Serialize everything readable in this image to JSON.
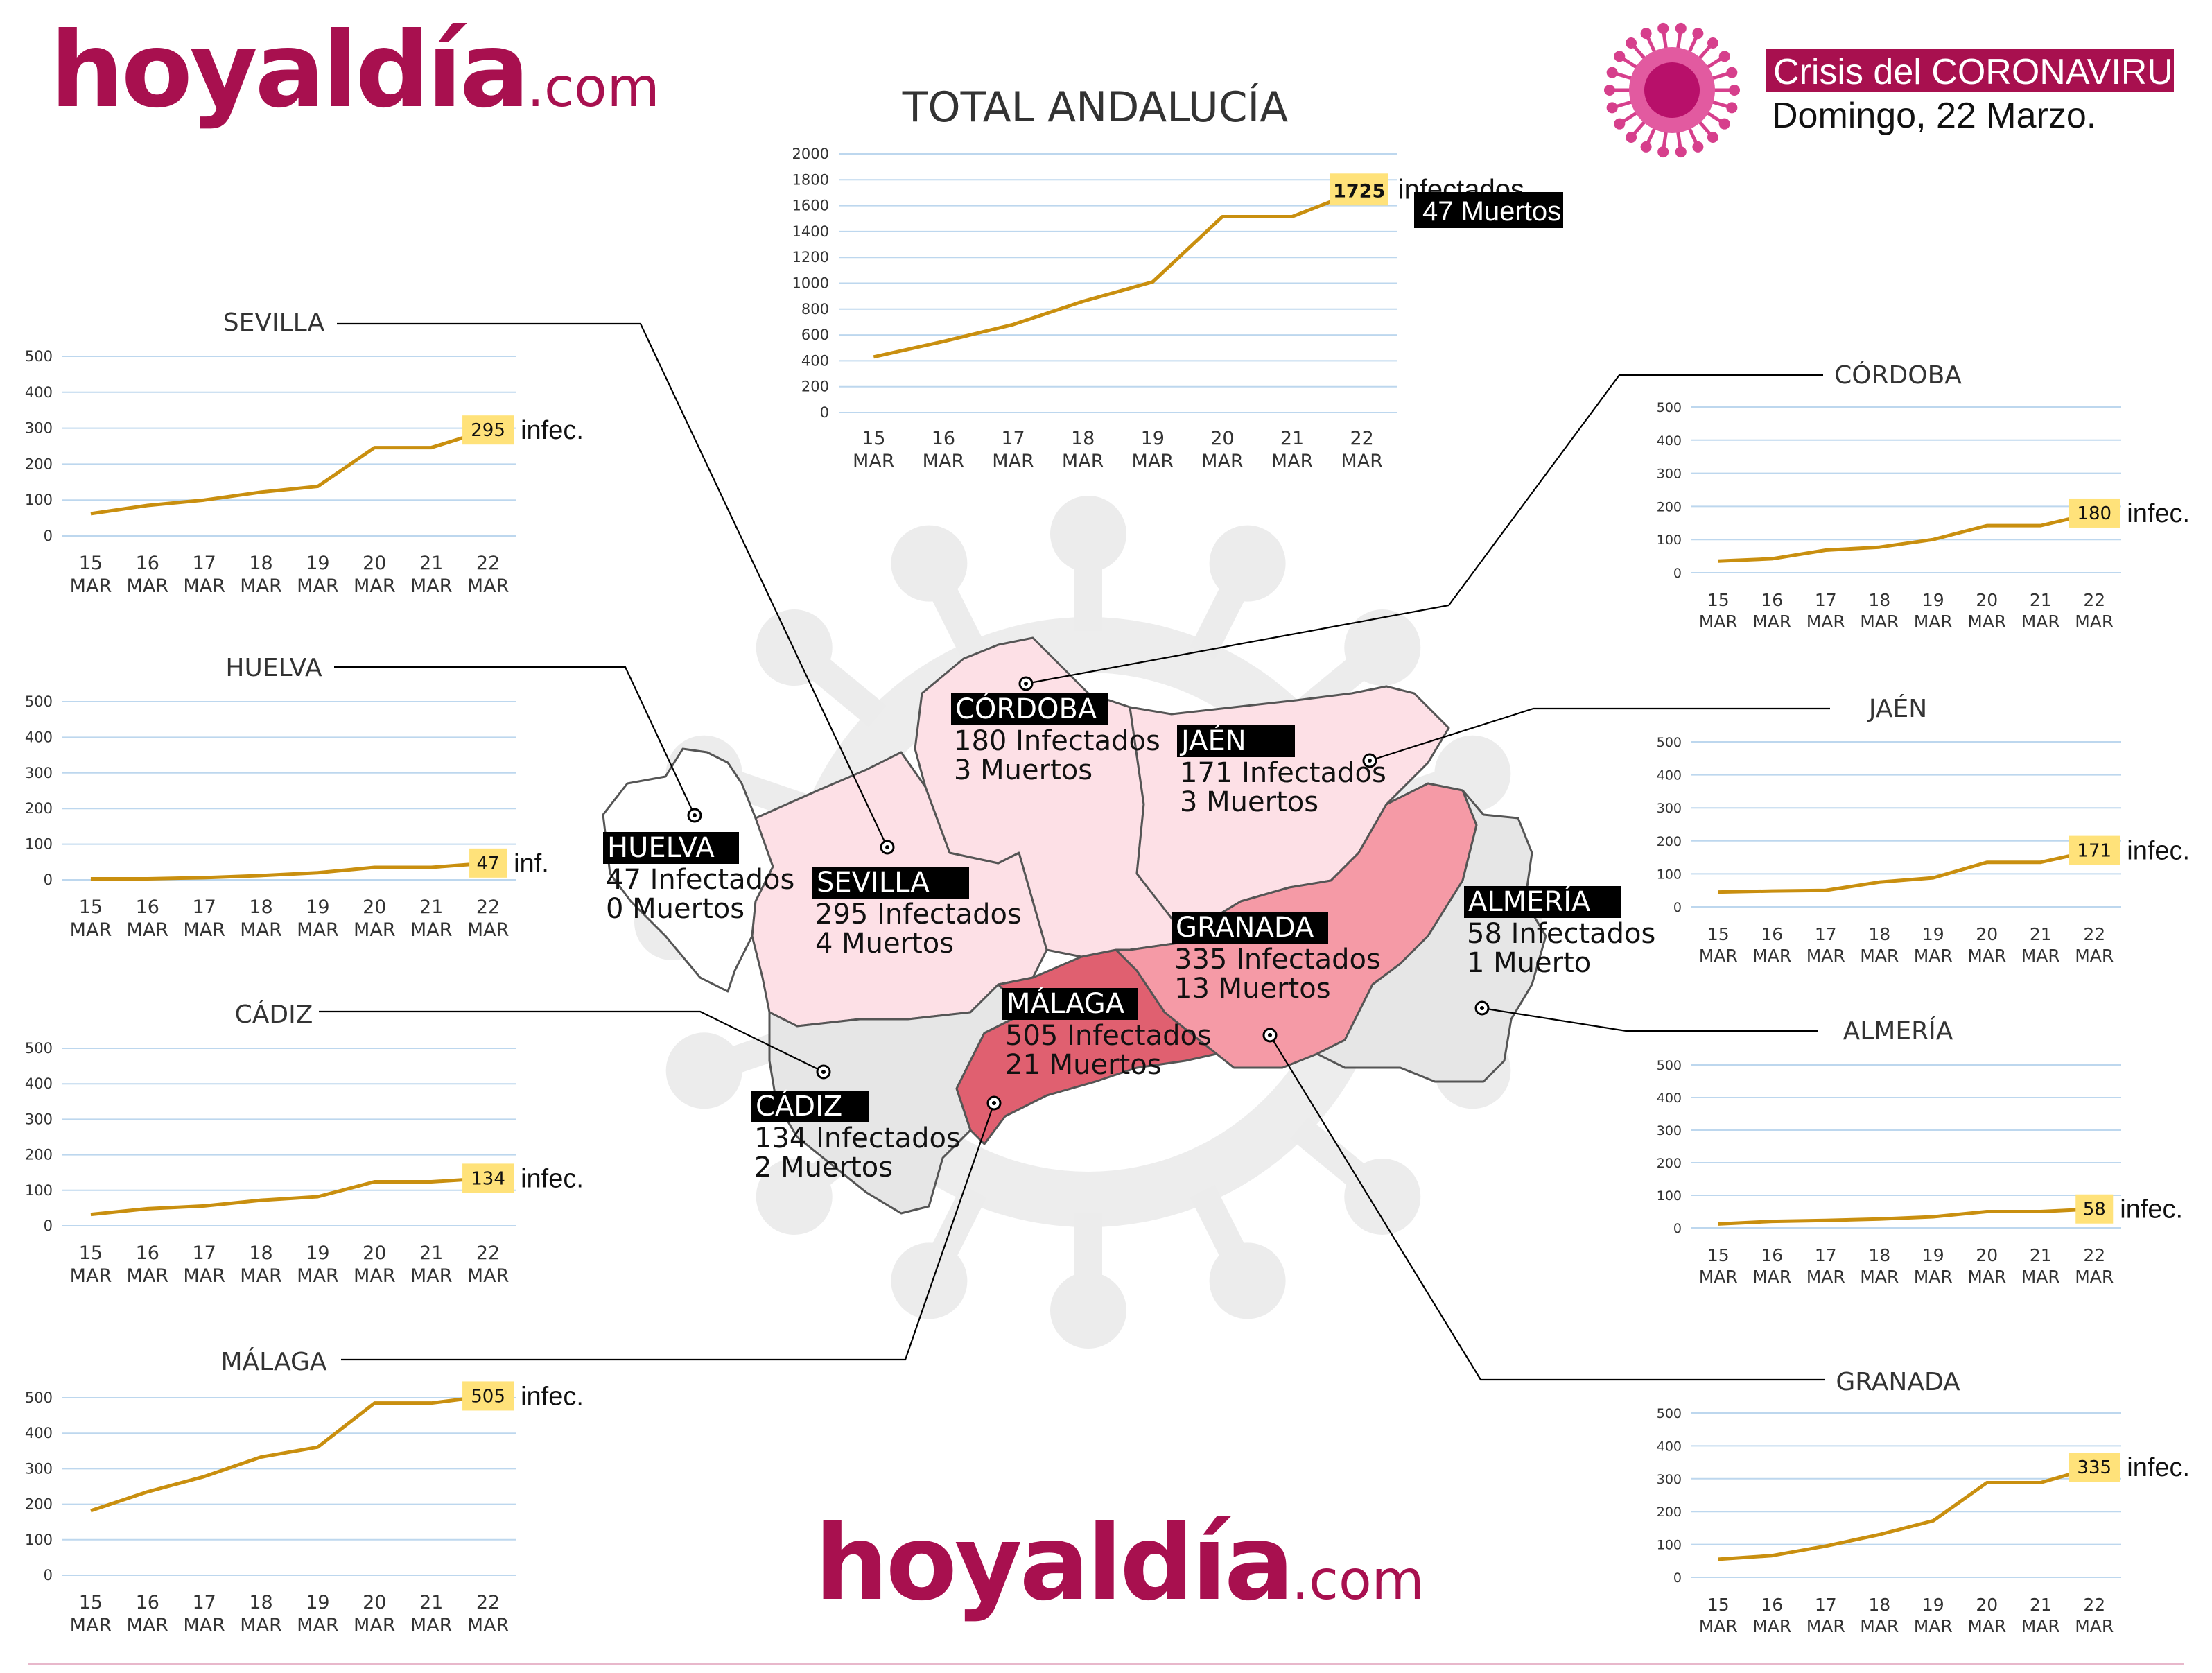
{
  "brand": {
    "logo_top": "hoyaldía",
    "logo_suffix": ".com",
    "logo_bottom": "hoyaldía",
    "accent_color": "#a8104f"
  },
  "header": {
    "badge": "Crisis del CORONAVIRUS",
    "date": "Domingo, 22 Marzo.",
    "badge_color": "#a8104f",
    "virus_icon": "virus-icon"
  },
  "colors": {
    "line": "#c98f0f",
    "grid": "#bdd7ee",
    "highlight": "#ffe27a",
    "malaga_fill": "#e06070",
    "granada_fill": "#f59aa6",
    "pink_fill": "#fde0e6",
    "gray_fill": "#e6e6e6"
  },
  "regions": [
    {
      "id": "cordoba",
      "name": "CÓRDOBA",
      "infected": "180 Infectados",
      "deaths": "3 Muertos"
    },
    {
      "id": "jaen",
      "name": "JAÉN",
      "infected": "171 Infectados",
      "deaths": "3 Muertos"
    },
    {
      "id": "huelva",
      "name": "HUELVA",
      "infected": "47 Infectados",
      "deaths": "0 Muertos"
    },
    {
      "id": "sevilla",
      "name": "SEVILLA",
      "infected": "295 Infectados",
      "deaths": "4 Muertos"
    },
    {
      "id": "almeria",
      "name": "ALMERÍA",
      "infected": "58 Infectados",
      "deaths": "1 Muerto"
    },
    {
      "id": "granada",
      "name": "GRANADA",
      "infected": "335 Infectados",
      "deaths": "13 Muertos"
    },
    {
      "id": "malaga",
      "name": "MÁLAGA",
      "infected": "505 Infectados",
      "deaths": "21 Muertos"
    },
    {
      "id": "cadiz",
      "name": "CÁDIZ",
      "infected": "134 Infectados",
      "deaths": "2 Muertos"
    }
  ],
  "chart_data": [
    {
      "id": "total",
      "type": "line",
      "title": "TOTAL ANDALUCÍA",
      "categories": [
        "15 MAR",
        "16 MAR",
        "17 MAR",
        "18 MAR",
        "19 MAR",
        "20 MAR",
        "21 MAR",
        "22 MAR"
      ],
      "values": [
        430,
        550,
        680,
        860,
        1010,
        1515,
        1515,
        1725
      ],
      "ylim": [
        0,
        2000
      ],
      "yticks": [
        0,
        200,
        400,
        600,
        800,
        1000,
        1200,
        1400,
        1600,
        1800,
        2000
      ],
      "end_value": "1725",
      "end_label": "infectados",
      "deaths_label": "47 Muertos",
      "grid": true
    },
    {
      "id": "sevilla",
      "type": "line",
      "title": "SEVILLA",
      "categories": [
        "15 MAR",
        "16 MAR",
        "17 MAR",
        "18 MAR",
        "19 MAR",
        "20 MAR",
        "21 MAR",
        "22 MAR"
      ],
      "values": [
        62,
        85,
        100,
        122,
        138,
        246,
        246,
        295
      ],
      "ylim": [
        0,
        500
      ],
      "yticks": [
        0,
        100,
        200,
        300,
        400,
        500
      ],
      "end_value": "295",
      "end_label": "infec.",
      "grid": true
    },
    {
      "id": "huelva",
      "type": "line",
      "title": "HUELVA",
      "categories": [
        "15 MAR",
        "16 MAR",
        "17 MAR",
        "18 MAR",
        "19 MAR",
        "20 MAR",
        "21 MAR",
        "22 MAR"
      ],
      "values": [
        3,
        3,
        6,
        12,
        20,
        35,
        35,
        47
      ],
      "ylim": [
        0,
        500
      ],
      "yticks": [
        0,
        100,
        200,
        300,
        400,
        500
      ],
      "end_value": "47",
      "end_label": "inf.",
      "grid": true
    },
    {
      "id": "cadiz",
      "type": "line",
      "title": "CÁDIZ",
      "categories": [
        "15 MAR",
        "16 MAR",
        "17 MAR",
        "18 MAR",
        "19 MAR",
        "20 MAR",
        "21 MAR",
        "22 MAR"
      ],
      "values": [
        32,
        48,
        56,
        72,
        82,
        124,
        124,
        134
      ],
      "ylim": [
        0,
        500
      ],
      "yticks": [
        0,
        100,
        200,
        300,
        400,
        500
      ],
      "end_value": "134",
      "end_label": "infec.",
      "grid": true
    },
    {
      "id": "malaga",
      "type": "line",
      "title": "MÁLAGA",
      "categories": [
        "15 MAR",
        "16 MAR",
        "17 MAR",
        "18 MAR",
        "19 MAR",
        "20 MAR",
        "21 MAR",
        "22 MAR"
      ],
      "values": [
        182,
        235,
        278,
        333,
        361,
        485,
        485,
        505
      ],
      "ylim": [
        0,
        500
      ],
      "yticks": [
        0,
        100,
        200,
        300,
        400,
        500
      ],
      "end_value": "505",
      "end_label": "infec.",
      "grid": true
    },
    {
      "id": "cordoba",
      "type": "line",
      "title": "CÓRDOBA",
      "categories": [
        "15 MAR",
        "16 MAR",
        "17 MAR",
        "18 MAR",
        "19 MAR",
        "20 MAR",
        "21 MAR",
        "22 MAR"
      ],
      "values": [
        35,
        42,
        68,
        77,
        100,
        142,
        142,
        180
      ],
      "ylim": [
        0,
        500
      ],
      "yticks": [
        0,
        100,
        200,
        300,
        400,
        500
      ],
      "end_value": "180",
      "end_label": "infec.",
      "grid": true
    },
    {
      "id": "jaen",
      "type": "line",
      "title": "JAÉN",
      "categories": [
        "15 MAR",
        "16 MAR",
        "17 MAR",
        "18 MAR",
        "19 MAR",
        "20 MAR",
        "21 MAR",
        "22 MAR"
      ],
      "values": [
        45,
        48,
        50,
        75,
        88,
        135,
        135,
        171
      ],
      "ylim": [
        0,
        500
      ],
      "yticks": [
        0,
        100,
        200,
        300,
        400,
        500
      ],
      "end_value": "171",
      "end_label": "infec.",
      "grid": true
    },
    {
      "id": "almeria",
      "type": "line",
      "title": "ALMERÍA",
      "categories": [
        "15 MAR",
        "16 MAR",
        "17 MAR",
        "18 MAR",
        "19 MAR",
        "20 MAR",
        "21 MAR",
        "22 MAR"
      ],
      "values": [
        12,
        20,
        23,
        27,
        34,
        50,
        50,
        58
      ],
      "ylim": [
        0,
        500
      ],
      "yticks": [
        0,
        100,
        200,
        300,
        400,
        500
      ],
      "end_value": "58",
      "end_label": "infec.",
      "grid": true
    },
    {
      "id": "granada",
      "type": "line",
      "title": "GRANADA",
      "categories": [
        "15 MAR",
        "16 MAR",
        "17 MAR",
        "18 MAR",
        "19 MAR",
        "20 MAR",
        "21 MAR",
        "22 MAR"
      ],
      "values": [
        55,
        66,
        95,
        130,
        172,
        288,
        288,
        335
      ],
      "ylim": [
        0,
        500
      ],
      "yticks": [
        0,
        100,
        200,
        300,
        400,
        500
      ],
      "end_value": "335",
      "end_label": "infec.",
      "grid": true
    }
  ]
}
